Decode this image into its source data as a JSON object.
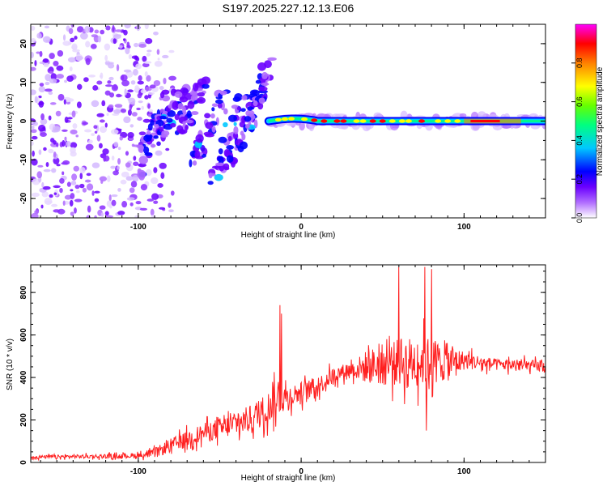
{
  "title": "S197.2025.227.12.13.E06",
  "chart_data": [
    {
      "type": "heatmap",
      "name": "spectrogram",
      "xlabel": "Height of straight line (km)",
      "ylabel": "Frequency (Hz)",
      "xlim": [
        -166,
        150
      ],
      "ylim": [
        -25,
        25
      ],
      "xticks": [
        -100,
        0,
        100
      ],
      "yticks": [
        -20,
        -10,
        0,
        10,
        20
      ],
      "colorbar": {
        "label": "Normalized spectral amplitude",
        "range": [
          0,
          1
        ],
        "ticks": [
          0.0,
          0.2,
          0.4,
          0.6,
          0.8
        ],
        "tick_labels": [
          "0.0",
          "0.2",
          "0.4",
          "0.6",
          "0.8"
        ],
        "colors": [
          "#ffffff",
          "#b06cff",
          "#6a00ff",
          "#0000ff",
          "#00c8ff",
          "#00ff80",
          "#66ff00",
          "#ffff00",
          "#ff8000",
          "#ff0000",
          "#ff00ff"
        ]
      },
      "features": {
        "noise_region_km": [
          -166,
          -95
        ],
        "oblique_streaks_km": [
          -100,
          -20
        ],
        "signal_track_km": [
          -20,
          150
        ],
        "signal_track_freq_hz": 0
      }
    },
    {
      "type": "line",
      "name": "snr",
      "xlabel": "Height of straight line (km)",
      "ylabel": "SNR (10 * v/v)",
      "xlim": [
        -166,
        150
      ],
      "ylim": [
        0,
        930
      ],
      "xticks": [
        -100,
        0,
        100
      ],
      "yticks": [
        0,
        200,
        400,
        600,
        800
      ],
      "color": "#ff2020",
      "series": [
        {
          "name": "SNR",
          "x": [
            -166,
            -140,
            -110,
            -95,
            -90,
            -80,
            -70,
            -60,
            -50,
            -40,
            -30,
            -20,
            -14,
            -12,
            -10,
            -8,
            0,
            10,
            20,
            30,
            35,
            40,
            50,
            60,
            70,
            80,
            90,
            100,
            110,
            120,
            130,
            140,
            150
          ],
          "y": [
            25,
            28,
            30,
            35,
            45,
            80,
            110,
            140,
            160,
            180,
            210,
            260,
            300,
            320,
            300,
            310,
            330,
            360,
            410,
            440,
            440,
            450,
            460,
            470,
            475,
            480,
            470,
            480,
            470,
            460,
            460,
            455,
            450
          ],
          "spread": [
            15,
            15,
            20,
            25,
            40,
            60,
            70,
            80,
            90,
            100,
            120,
            140,
            150,
            150,
            130,
            100,
            90,
            80,
            70,
            60,
            100,
            140,
            180,
            200,
            220,
            200,
            160,
            80,
            60,
            50,
            50,
            50,
            50
          ],
          "spikes": [
            {
              "x": -13,
              "y": 740
            },
            {
              "x": -12,
              "y": 700
            },
            {
              "x": 60,
              "y": 920
            },
            {
              "x": 76,
              "y": 920
            },
            {
              "x": 80,
              "y": 910
            },
            {
              "x": 77,
              "y": 150
            }
          ]
        }
      ]
    }
  ]
}
